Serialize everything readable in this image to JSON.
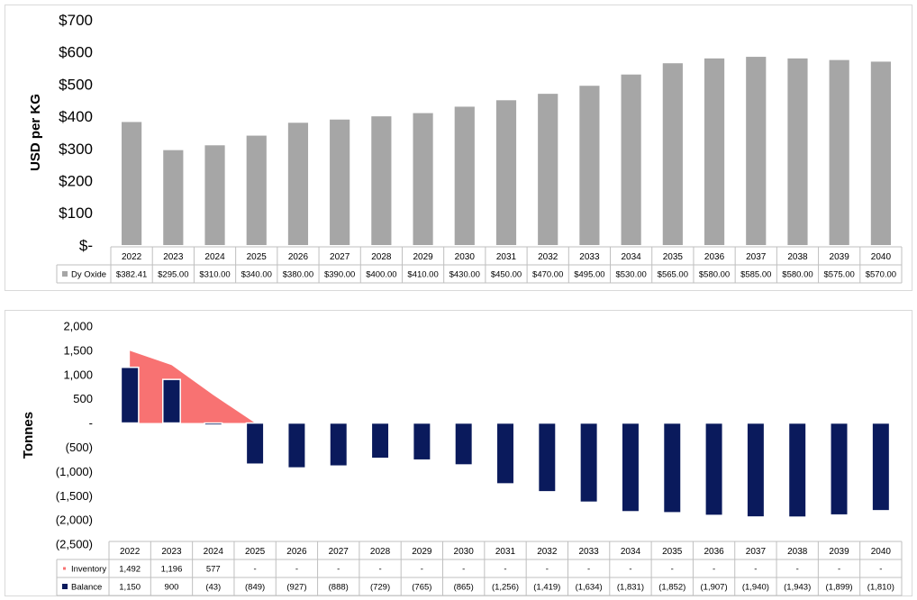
{
  "chart_data": [
    {
      "type": "bar",
      "ylabel": "USD per KG",
      "ylim": [
        0,
        700
      ],
      "yticks": [
        0,
        100,
        200,
        300,
        400,
        500,
        600,
        700
      ],
      "ytick_labels": [
        "$-",
        "$100",
        "$200",
        "$300",
        "$400",
        "$500",
        "$600",
        "$700"
      ],
      "categories": [
        "2022",
        "2023",
        "2024",
        "2025",
        "2026",
        "2027",
        "2028",
        "2029",
        "2030",
        "2031",
        "2032",
        "2033",
        "2034",
        "2035",
        "2036",
        "2037",
        "2038",
        "2039",
        "2040"
      ],
      "series": [
        {
          "name": "Dy Oxide",
          "color": "#a6a6a6",
          "values": [
            382.41,
            295,
            310,
            340,
            380,
            390,
            400,
            410,
            430,
            450,
            470,
            495,
            530,
            565,
            580,
            585,
            580,
            575,
            570
          ],
          "labels": [
            "$382.41",
            "$295.00",
            "$310.00",
            "$340.00",
            "$380.00",
            "$390.00",
            "$400.00",
            "$410.00",
            "$430.00",
            "$450.00",
            "$470.00",
            "$495.00",
            "$530.00",
            "$565.00",
            "$580.00",
            "$585.00",
            "$580.00",
            "$575.00",
            "$570.00"
          ]
        }
      ],
      "data_table": true,
      "grid": false
    },
    {
      "type": "bar",
      "ylabel": "Tonnes",
      "ylim": [
        -2500,
        2000
      ],
      "yticks": [
        -2500,
        -2000,
        -1500,
        -1000,
        -500,
        0,
        500,
        1000,
        1500,
        2000
      ],
      "ytick_labels": [
        "(2,500)",
        "(2,000)",
        "(1,500)",
        "(1,000)",
        "(500)",
        "-",
        "500",
        "1,000",
        "1,500",
        "2,000"
      ],
      "categories": [
        "2022",
        "2023",
        "2024",
        "2025",
        "2026",
        "2027",
        "2028",
        "2029",
        "2030",
        "2031",
        "2032",
        "2033",
        "2034",
        "2035",
        "2036",
        "2037",
        "2038",
        "2039",
        "2040"
      ],
      "series": [
        {
          "name": "Inventory",
          "type": "area",
          "color": "#f87272",
          "values": [
            1492,
            1196,
            577,
            0,
            0,
            0,
            0,
            0,
            0,
            0,
            0,
            0,
            0,
            0,
            0,
            0,
            0,
            0,
            0
          ],
          "labels": [
            "1,492",
            "1,196",
            "577",
            "-",
            "-",
            "-",
            "-",
            "-",
            "-",
            "-",
            "-",
            "-",
            "-",
            "-",
            "-",
            "-",
            "-",
            "-",
            "-"
          ]
        },
        {
          "name": "Balance",
          "type": "bar",
          "color": "#0a1a5c",
          "values": [
            1150,
            900,
            -43,
            -849,
            -927,
            -888,
            -729,
            -765,
            -865,
            -1256,
            -1419,
            -1634,
            -1831,
            -1852,
            -1907,
            -1940,
            -1943,
            -1899,
            -1810
          ],
          "labels": [
            "1,150",
            "900",
            "(43)",
            "(849)",
            "(927)",
            "(888)",
            "(729)",
            "(765)",
            "(865)",
            "(1,256)",
            "(1,419)",
            "(1,634)",
            "(1,831)",
            "(1,852)",
            "(1,907)",
            "(1,940)",
            "(1,943)",
            "(1,899)",
            "(1,810)"
          ]
        }
      ],
      "data_table": true,
      "grid": false
    }
  ]
}
